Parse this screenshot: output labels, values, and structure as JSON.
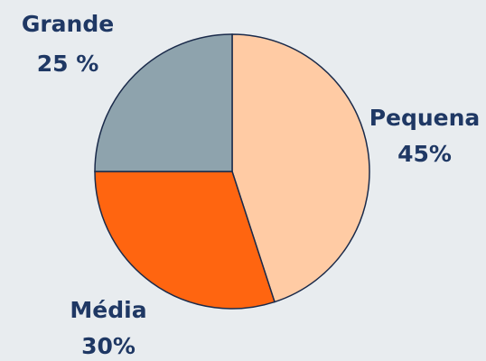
{
  "chart_data": {
    "type": "pie",
    "categories": [
      "Pequena",
      "Média",
      "Grande"
    ],
    "values": [
      45,
      30,
      25
    ],
    "value_labels": [
      "45%",
      "30%",
      "25 %"
    ],
    "colors": [
      "#ffcba4",
      "#ff6510",
      "#8ea3ad"
    ]
  }
}
